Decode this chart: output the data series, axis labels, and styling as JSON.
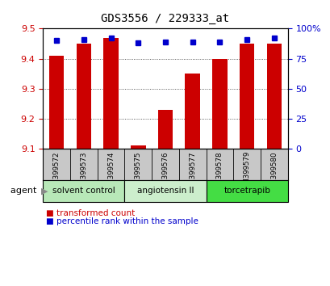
{
  "title": "GDS3556 / 229333_at",
  "samples": [
    "GSM399572",
    "GSM399573",
    "GSM399574",
    "GSM399575",
    "GSM399576",
    "GSM399577",
    "GSM399578",
    "GSM399579",
    "GSM399580"
  ],
  "transformed_count": [
    9.41,
    9.45,
    9.47,
    9.11,
    9.23,
    9.35,
    9.4,
    9.45,
    9.45
  ],
  "percentile_rank": [
    90,
    91,
    92,
    88,
    89,
    89,
    89,
    91,
    92
  ],
  "ymin": 9.1,
  "ymax": 9.5,
  "yticks": [
    9.1,
    9.2,
    9.3,
    9.4,
    9.5
  ],
  "right_yticks": [
    0,
    25,
    50,
    75,
    100
  ],
  "bar_color": "#cc0000",
  "dot_color": "#0000cc",
  "groups": [
    {
      "label": "solvent control",
      "start": 0,
      "end": 3,
      "color": "#b8e8b8"
    },
    {
      "label": "angiotensin II",
      "start": 3,
      "end": 6,
      "color": "#cceecc"
    },
    {
      "label": "torcetrapib",
      "start": 6,
      "end": 9,
      "color": "#44dd44"
    }
  ],
  "legend_items": [
    {
      "label": "transformed count",
      "color": "#cc0000"
    },
    {
      "label": "percentile rank within the sample",
      "color": "#0000cc"
    }
  ],
  "agent_label": "agent",
  "bar_color_left": "#cc0000",
  "tick_color_right": "#0000cc",
  "title_fontsize": 10,
  "tick_fontsize": 8,
  "bar_width": 0.55,
  "bg_color": "#ffffff",
  "label_bg": "#c8c8c8",
  "grid_color": "#333333"
}
